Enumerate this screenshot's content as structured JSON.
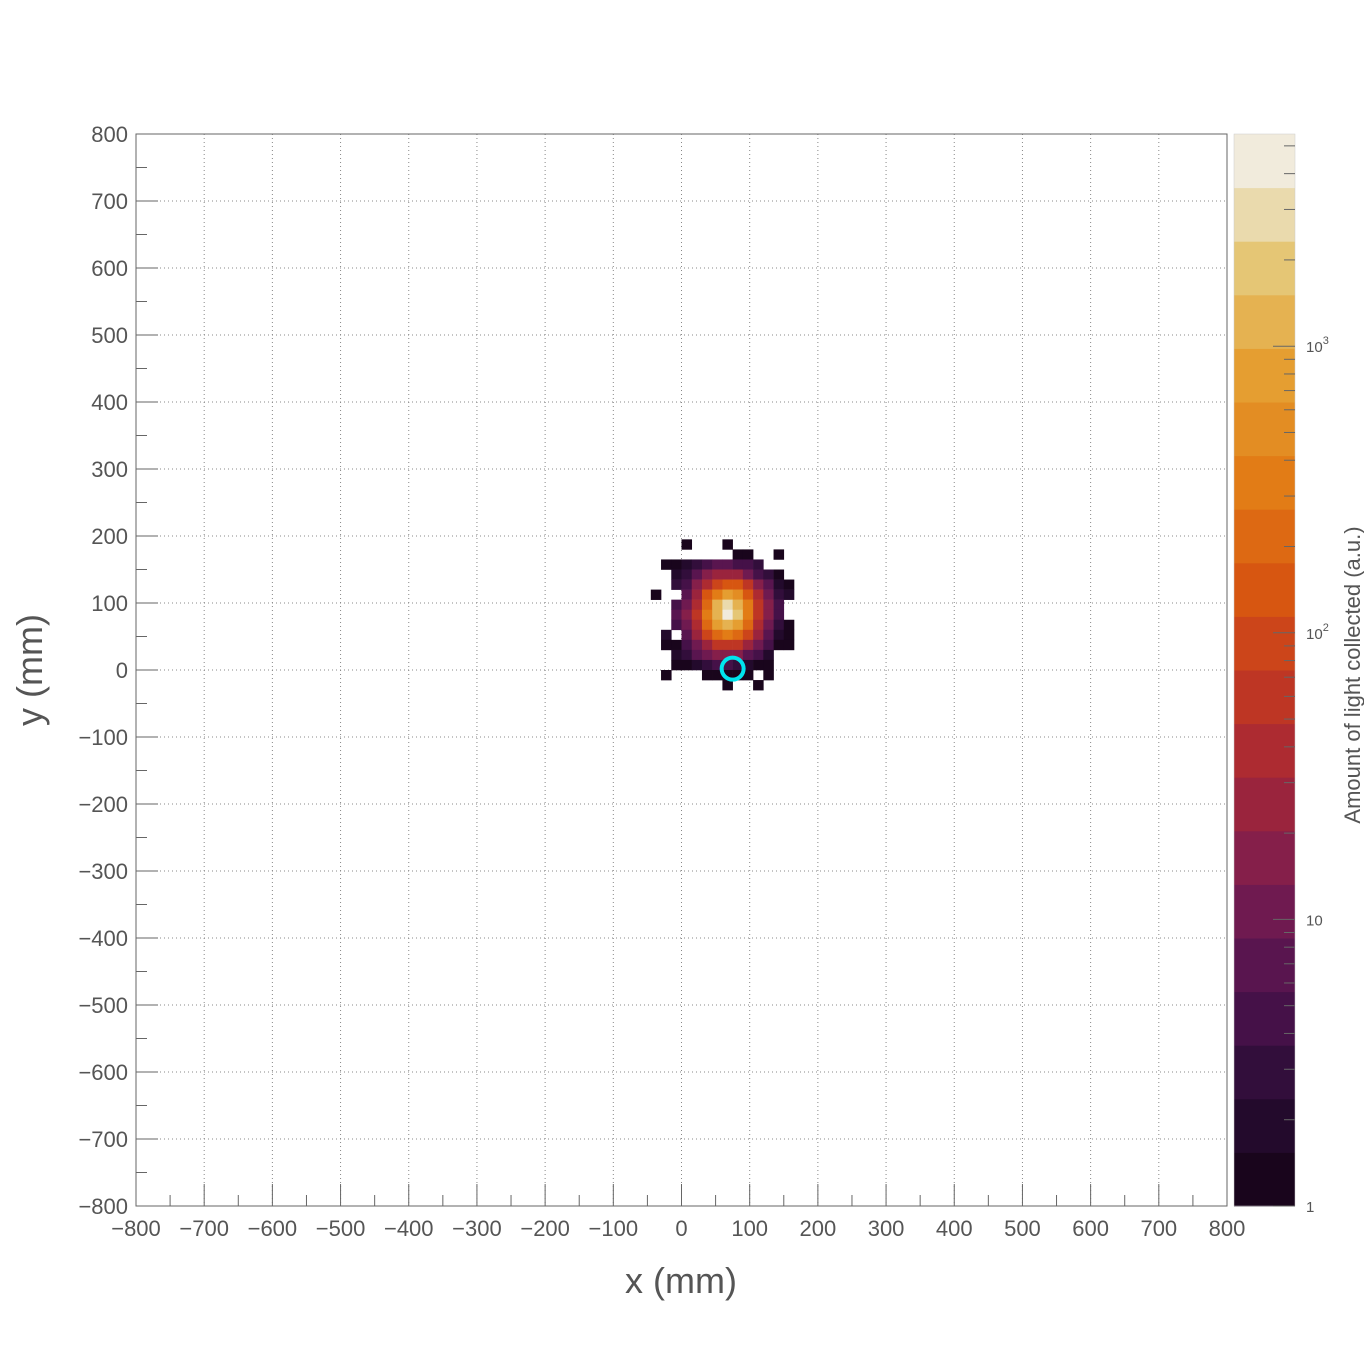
{
  "chart_data": {
    "type": "heatmap",
    "title": "",
    "xlabel": "x (mm)",
    "ylabel": "y (mm)",
    "zlabel": "Amount of light collected (a.u.)",
    "xlim": [
      -800,
      800
    ],
    "ylim": [
      -800,
      800
    ],
    "x_ticks": [
      "−800",
      "−700",
      "−600",
      "−500",
      "−400",
      "−300",
      "−200",
      "−100",
      "0",
      "100",
      "200",
      "300",
      "400",
      "500",
      "600",
      "700",
      "800"
    ],
    "y_ticks": [
      "800",
      "700",
      "600",
      "500",
      "400",
      "300",
      "200",
      "100",
      "0",
      "−100",
      "−200",
      "−300",
      "−400",
      "−500",
      "−600",
      "−700",
      "−800"
    ],
    "grid": true,
    "z_scale": "log",
    "zlim": [
      1,
      5500
    ],
    "z_tick_labels": [
      {
        "value": 1,
        "base": "1",
        "exp": ""
      },
      {
        "value": 10,
        "base": "10",
        "exp": ""
      },
      {
        "value": 100,
        "base": "10",
        "exp": "2"
      },
      {
        "value": 1000,
        "base": "10",
        "exp": "3"
      }
    ],
    "bin_size": 15,
    "bins": [
      [
        7.5,
        187.5,
        1
      ],
      [
        67.5,
        187.5,
        1
      ],
      [
        82.5,
        172.5,
        1
      ],
      [
        97.5,
        172.5,
        1
      ],
      [
        142.5,
        172.5,
        1
      ],
      [
        -22.5,
        157.5,
        1
      ],
      [
        -7.5,
        157.5,
        1
      ],
      [
        7.5,
        157.5,
        2
      ],
      [
        22.5,
        157.5,
        3
      ],
      [
        37.5,
        157.5,
        4
      ],
      [
        52.5,
        157.5,
        6
      ],
      [
        67.5,
        157.5,
        6
      ],
      [
        82.5,
        157.5,
        5
      ],
      [
        97.5,
        157.5,
        4
      ],
      [
        112.5,
        157.5,
        3
      ],
      [
        -7.5,
        142.5,
        2
      ],
      [
        7.5,
        142.5,
        3
      ],
      [
        22.5,
        142.5,
        6
      ],
      [
        37.5,
        142.5,
        14
      ],
      [
        52.5,
        142.5,
        25
      ],
      [
        67.5,
        142.5,
        28
      ],
      [
        82.5,
        142.5,
        22
      ],
      [
        97.5,
        142.5,
        12
      ],
      [
        112.5,
        142.5,
        5
      ],
      [
        127.5,
        142.5,
        3
      ],
      [
        142.5,
        142.5,
        1
      ],
      [
        -7.5,
        127.5,
        3
      ],
      [
        7.5,
        127.5,
        5
      ],
      [
        22.5,
        127.5,
        14
      ],
      [
        37.5,
        127.5,
        45
      ],
      [
        52.5,
        127.5,
        110
      ],
      [
        67.5,
        127.5,
        170
      ],
      [
        82.5,
        127.5,
        120
      ],
      [
        97.5,
        127.5,
        50
      ],
      [
        112.5,
        127.5,
        18
      ],
      [
        127.5,
        127.5,
        6
      ],
      [
        142.5,
        127.5,
        2
      ],
      [
        157.5,
        127.5,
        1
      ],
      [
        -37.5,
        112.5,
        1
      ],
      [
        7.5,
        112.5,
        8
      ],
      [
        22.5,
        112.5,
        25
      ],
      [
        37.5,
        112.5,
        120
      ],
      [
        52.5,
        112.5,
        380
      ],
      [
        67.5,
        112.5,
        650
      ],
      [
        82.5,
        112.5,
        450
      ],
      [
        97.5,
        112.5,
        140
      ],
      [
        112.5,
        112.5,
        35
      ],
      [
        127.5,
        112.5,
        9
      ],
      [
        142.5,
        112.5,
        3
      ],
      [
        157.5,
        112.5,
        2
      ],
      [
        -7.5,
        97.5,
        5
      ],
      [
        7.5,
        97.5,
        12
      ],
      [
        22.5,
        97.5,
        45
      ],
      [
        37.5,
        97.5,
        260
      ],
      [
        52.5,
        97.5,
        1100
      ],
      [
        67.5,
        97.5,
        2600
      ],
      [
        82.5,
        97.5,
        1300
      ],
      [
        97.5,
        97.5,
        300
      ],
      [
        112.5,
        97.5,
        60
      ],
      [
        127.5,
        97.5,
        14
      ],
      [
        142.5,
        97.5,
        4
      ],
      [
        -7.5,
        82.5,
        6
      ],
      [
        7.5,
        82.5,
        14
      ],
      [
        22.5,
        82.5,
        55
      ],
      [
        37.5,
        82.5,
        300
      ],
      [
        52.5,
        82.5,
        1400
      ],
      [
        67.5,
        82.5,
        5400
      ],
      [
        82.5,
        82.5,
        1600
      ],
      [
        97.5,
        82.5,
        340
      ],
      [
        112.5,
        82.5,
        70
      ],
      [
        127.5,
        82.5,
        16
      ],
      [
        142.5,
        82.5,
        5
      ],
      [
        -7.5,
        67.5,
        4
      ],
      [
        7.5,
        67.5,
        10
      ],
      [
        22.5,
        67.5,
        40
      ],
      [
        37.5,
        67.5,
        200
      ],
      [
        52.5,
        67.5,
        750
      ],
      [
        67.5,
        67.5,
        1300
      ],
      [
        82.5,
        67.5,
        800
      ],
      [
        97.5,
        67.5,
        220
      ],
      [
        112.5,
        67.5,
        45
      ],
      [
        127.5,
        67.5,
        11
      ],
      [
        142.5,
        67.5,
        3
      ],
      [
        157.5,
        67.5,
        1
      ],
      [
        -22.5,
        52.5,
        2
      ],
      [
        7.5,
        52.5,
        7
      ],
      [
        22.5,
        52.5,
        22
      ],
      [
        37.5,
        52.5,
        75
      ],
      [
        52.5,
        52.5,
        200
      ],
      [
        67.5,
        52.5,
        300
      ],
      [
        82.5,
        52.5,
        210
      ],
      [
        97.5,
        52.5,
        80
      ],
      [
        112.5,
        52.5,
        24
      ],
      [
        127.5,
        52.5,
        7
      ],
      [
        142.5,
        52.5,
        2
      ],
      [
        157.5,
        52.5,
        1
      ],
      [
        -22.5,
        37.5,
        1
      ],
      [
        -7.5,
        37.5,
        1
      ],
      [
        7.5,
        37.5,
        4
      ],
      [
        22.5,
        37.5,
        10
      ],
      [
        37.5,
        37.5,
        25
      ],
      [
        52.5,
        37.5,
        50
      ],
      [
        67.5,
        37.5,
        70
      ],
      [
        82.5,
        37.5,
        50
      ],
      [
        97.5,
        37.5,
        25
      ],
      [
        112.5,
        37.5,
        9
      ],
      [
        127.5,
        37.5,
        4
      ],
      [
        142.5,
        37.5,
        1
      ],
      [
        157.5,
        37.5,
        1
      ],
      [
        -7.5,
        22.5,
        2
      ],
      [
        7.5,
        22.5,
        3
      ],
      [
        22.5,
        22.5,
        6
      ],
      [
        37.5,
        22.5,
        10
      ],
      [
        52.5,
        22.5,
        16
      ],
      [
        67.5,
        22.5,
        18
      ],
      [
        82.5,
        22.5,
        14
      ],
      [
        97.5,
        22.5,
        8
      ],
      [
        112.5,
        22.5,
        4
      ],
      [
        127.5,
        22.5,
        2
      ],
      [
        -7.5,
        7.5,
        1
      ],
      [
        7.5,
        7.5,
        1
      ],
      [
        22.5,
        7.5,
        2
      ],
      [
        37.5,
        7.5,
        3
      ],
      [
        52.5,
        7.5,
        4
      ],
      [
        67.5,
        7.5,
        4
      ],
      [
        82.5,
        7.5,
        3
      ],
      [
        97.5,
        7.5,
        2
      ],
      [
        112.5,
        7.5,
        1
      ],
      [
        127.5,
        7.5,
        1
      ],
      [
        -22.5,
        -7.5,
        1
      ],
      [
        37.5,
        -7.5,
        1
      ],
      [
        52.5,
        -7.5,
        1
      ],
      [
        67.5,
        -7.5,
        1
      ],
      [
        82.5,
        -7.5,
        1
      ],
      [
        97.5,
        -7.5,
        1
      ],
      [
        127.5,
        -7.5,
        1
      ],
      [
        67.5,
        -22.5,
        1
      ],
      [
        112.5,
        -22.5,
        1
      ]
    ],
    "marker": {
      "x": 75,
      "y": 2,
      "color": "#00e5ee"
    },
    "colormap_levels": 20
  }
}
